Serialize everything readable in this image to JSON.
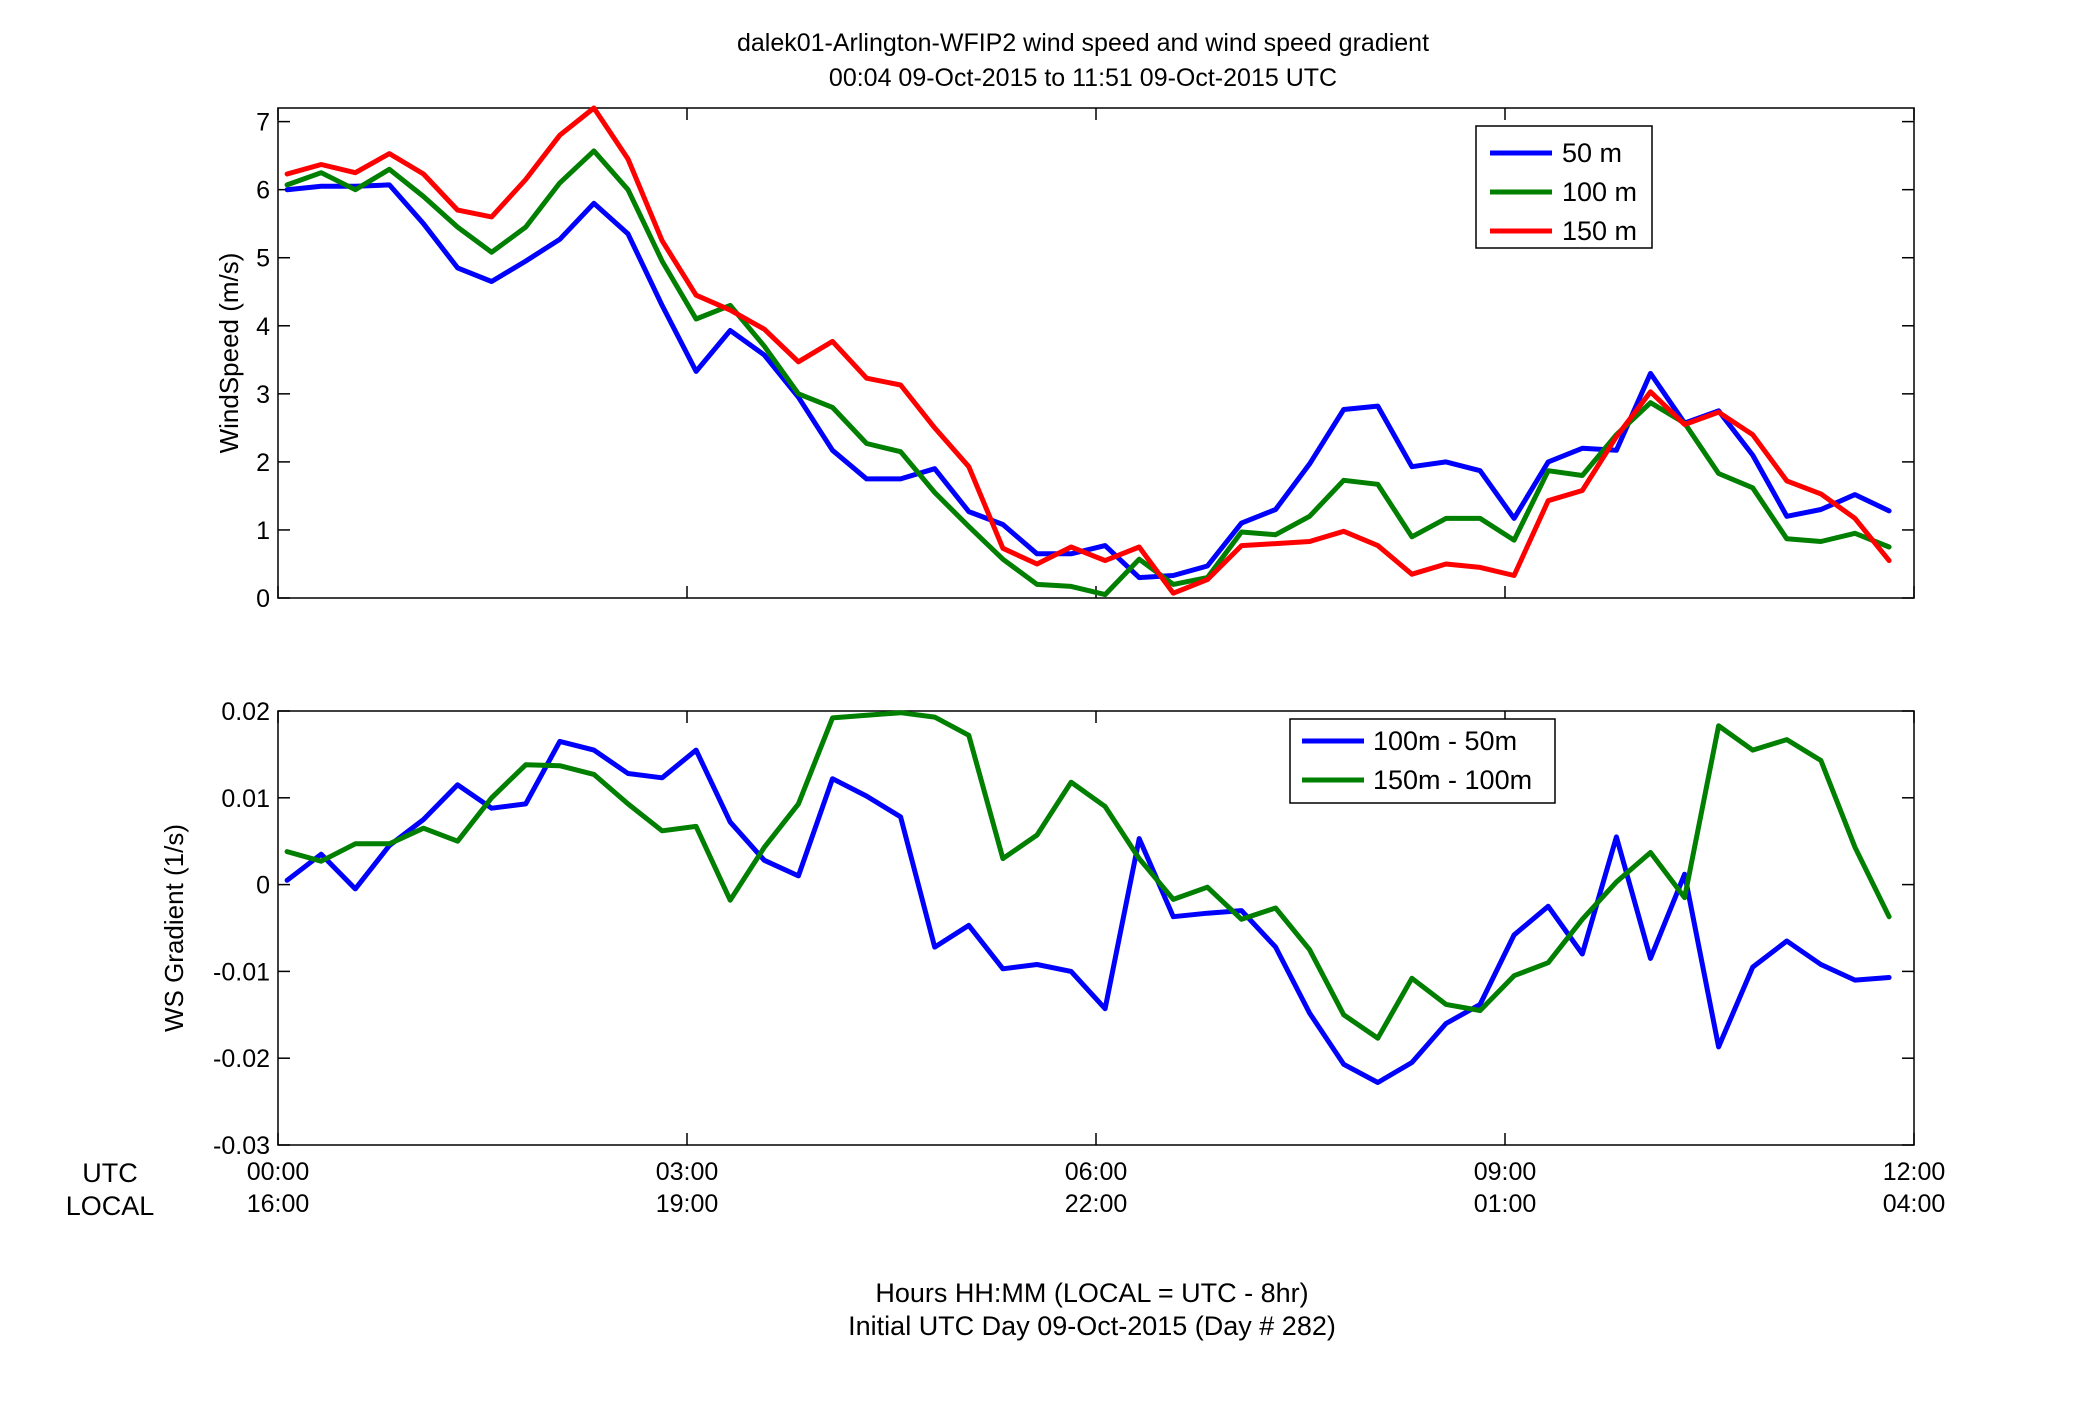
{
  "title_line1": "dalek01-Arlington-WFIP2  wind speed and wind speed gradient",
  "title_line2": "00:04 09-Oct-2015 to 11:51 09-Oct-2015  UTC",
  "x_row_labels": {
    "utc": "UTC",
    "local": "LOCAL"
  },
  "x_ticks_utc": [
    "00:00",
    "03:00",
    "06:00",
    "09:00",
    "12:00"
  ],
  "x_ticks_local": [
    "16:00",
    "19:00",
    "22:00",
    "01:00",
    "04:00"
  ],
  "x_caption_line1": "Hours HH:MM  (LOCAL = UTC - 8hr)",
  "x_caption_line2": "Initial UTC Day 09-Oct-2015 (Day # 282)",
  "colors": {
    "blue": "#0000ff",
    "green": "#007f00",
    "red": "#ff0000"
  },
  "chart_data": [
    {
      "type": "line",
      "ylabel": "WindSpeed (m/s)",
      "xlim": [
        0,
        12
      ],
      "ylim": [
        0,
        7.2
      ],
      "y_ticks": [
        0,
        1,
        2,
        3,
        4,
        5,
        6,
        7
      ],
      "x_tick_values": [
        0,
        3,
        6,
        9,
        12
      ],
      "grid": false,
      "legend_position": "top-right",
      "x": [
        0.067,
        0.317,
        0.567,
        0.817,
        1.067,
        1.317,
        1.567,
        1.817,
        2.067,
        2.317,
        2.567,
        2.817,
        3.067,
        3.317,
        3.567,
        3.817,
        4.067,
        4.317,
        4.567,
        4.817,
        5.067,
        5.317,
        5.567,
        5.817,
        6.067,
        6.317,
        6.567,
        6.817,
        7.067,
        7.317,
        7.567,
        7.817,
        8.067,
        8.317,
        8.567,
        8.817,
        9.067,
        9.317,
        9.567,
        9.817,
        10.067,
        10.317,
        10.567,
        10.817,
        11.067,
        11.317,
        11.567,
        11.817
      ],
      "series": [
        {
          "name": "50 m",
          "color": "#0000ff",
          "values": [
            6.0,
            6.05,
            6.05,
            6.07,
            5.5,
            4.85,
            4.65,
            4.95,
            5.27,
            5.8,
            5.35,
            4.3,
            3.33,
            3.93,
            3.57,
            2.95,
            2.17,
            1.75,
            1.75,
            1.9,
            1.27,
            1.08,
            0.65,
            0.65,
            0.77,
            0.3,
            0.33,
            0.47,
            1.1,
            1.3,
            1.97,
            2.77,
            2.82,
            1.93,
            2.0,
            1.87,
            1.17,
            2.0,
            2.2,
            2.17,
            3.3,
            2.57,
            2.75,
            2.1,
            1.2,
            1.3,
            1.52,
            1.28
          ]
        },
        {
          "name": "100 m",
          "color": "#007f00",
          "values": [
            6.07,
            6.25,
            6.0,
            6.3,
            5.9,
            5.45,
            5.08,
            5.45,
            6.1,
            6.57,
            6.0,
            4.95,
            4.1,
            4.3,
            3.7,
            3.0,
            2.8,
            2.27,
            2.15,
            1.55,
            1.05,
            0.57,
            0.2,
            0.17,
            0.05,
            0.57,
            0.2,
            0.3,
            0.97,
            0.93,
            1.2,
            1.73,
            1.67,
            0.9,
            1.17,
            1.17,
            0.85,
            1.87,
            1.8,
            2.4,
            2.87,
            2.57,
            1.83,
            1.62,
            0.87,
            0.83,
            0.95,
            0.75
          ]
        },
        {
          "name": "150 m",
          "color": "#ff0000",
          "values": [
            6.23,
            6.37,
            6.25,
            6.53,
            6.23,
            5.7,
            5.6,
            6.15,
            6.8,
            7.2,
            6.45,
            5.25,
            4.45,
            4.23,
            3.95,
            3.47,
            3.77,
            3.23,
            3.13,
            2.5,
            1.93,
            0.73,
            0.5,
            0.75,
            0.55,
            0.75,
            0.07,
            0.27,
            0.77,
            0.8,
            0.83,
            0.98,
            0.77,
            0.35,
            0.5,
            0.45,
            0.33,
            1.43,
            1.58,
            2.37,
            3.03,
            2.55,
            2.73,
            2.4,
            1.72,
            1.53,
            1.17,
            0.55
          ]
        }
      ]
    },
    {
      "type": "line",
      "ylabel": "WS Gradient (1/s)",
      "xlim": [
        0,
        12
      ],
      "ylim": [
        -0.03,
        0.02
      ],
      "y_ticks": [
        -0.03,
        -0.02,
        -0.01,
        0,
        0.01,
        0.02
      ],
      "y_tick_labels": [
        "-0.03",
        "-0.02",
        "-0.01",
        "0",
        "0.01",
        "0.02"
      ],
      "x_tick_values": [
        0,
        3,
        6,
        9,
        12
      ],
      "grid": false,
      "legend_position": "top-center",
      "x": [
        0.067,
        0.317,
        0.567,
        0.817,
        1.067,
        1.317,
        1.567,
        1.817,
        2.067,
        2.317,
        2.567,
        2.817,
        3.067,
        3.317,
        3.567,
        3.817,
        4.067,
        4.317,
        4.567,
        4.817,
        5.067,
        5.317,
        5.567,
        5.817,
        6.067,
        6.317,
        6.567,
        6.817,
        7.067,
        7.317,
        7.567,
        7.817,
        8.067,
        8.317,
        8.567,
        8.817,
        9.067,
        9.317,
        9.567,
        9.817,
        10.067,
        10.317,
        10.567,
        10.817,
        11.067,
        11.317,
        11.567,
        11.817
      ],
      "series": [
        {
          "name": "100m - 50m",
          "color": "#0000ff",
          "values": [
            0.0005,
            0.0035,
            -0.0005,
            0.0045,
            0.0075,
            0.0115,
            0.0088,
            0.0093,
            0.0165,
            0.0155,
            0.0128,
            0.0123,
            0.0155,
            0.0072,
            0.0028,
            0.001,
            0.0122,
            0.0102,
            0.0078,
            -0.0072,
            -0.0047,
            -0.0097,
            -0.0092,
            -0.01,
            -0.0143,
            0.0053,
            -0.0037,
            -0.0033,
            -0.003,
            -0.0072,
            -0.0148,
            -0.0207,
            -0.0228,
            -0.0205,
            -0.016,
            -0.0138,
            -0.0058,
            -0.0025,
            -0.008,
            0.0055,
            -0.0085,
            0.0012,
            -0.0187,
            -0.0095,
            -0.0065,
            -0.0092,
            -0.011,
            -0.0107
          ]
        },
        {
          "name": "150m - 100m",
          "color": "#007f00",
          "values": [
            0.0038,
            0.0027,
            0.0047,
            0.0047,
            0.0065,
            0.005,
            0.01,
            0.0138,
            0.0137,
            0.0127,
            0.0093,
            0.0062,
            0.0067,
            -0.0018,
            0.0043,
            0.0093,
            0.0192,
            0.0195,
            0.0198,
            0.0193,
            0.0172,
            0.003,
            0.0057,
            0.0118,
            0.009,
            0.003,
            -0.0017,
            -0.0003,
            -0.004,
            -0.0027,
            -0.0075,
            -0.015,
            -0.0177,
            -0.0108,
            -0.0138,
            -0.0145,
            -0.0105,
            -0.009,
            -0.004,
            0.0003,
            0.0037,
            -0.0015,
            0.0183,
            0.0155,
            0.0167,
            0.0143,
            0.0043,
            -0.0037
          ]
        }
      ]
    }
  ]
}
